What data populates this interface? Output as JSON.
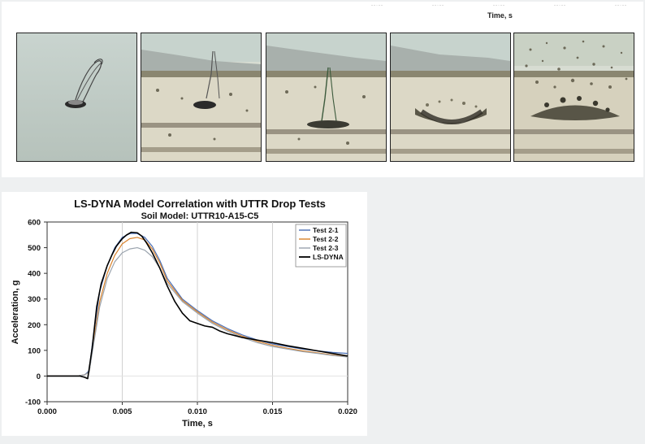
{
  "top_strip": {
    "axis_label": "Time, s",
    "frame_count": 5
  },
  "chart_data": {
    "type": "line",
    "title": "LS-DYNA Model Correlation with UTTR Drop Tests",
    "subtitle": "Soil Model: UTTR10-A15-C5",
    "xlabel": "Time, s",
    "ylabel": "Acceleration, g",
    "xlim": [
      0,
      0.02
    ],
    "ylim": [
      -100,
      600
    ],
    "x_ticks": [
      "0.000",
      "0.005",
      "0.010",
      "0.015",
      "0.020"
    ],
    "y_ticks": [
      "-100",
      "0",
      "100",
      "200",
      "300",
      "400",
      "500",
      "600"
    ],
    "x_tick_values": [
      0,
      0.005,
      0.01,
      0.015,
      0.02
    ],
    "y_tick_values": [
      -100,
      0,
      100,
      200,
      300,
      400,
      500,
      600
    ],
    "legend_position": "top-right",
    "grid": "vertical",
    "series": [
      {
        "name": "Test 2-1",
        "color": "#4a6fb5",
        "x": [
          0,
          0.002,
          0.0025,
          0.0028,
          0.003,
          0.0035,
          0.004,
          0.0045,
          0.005,
          0.0055,
          0.006,
          0.0065,
          0.007,
          0.0075,
          0.008,
          0.009,
          0.01,
          0.011,
          0.012,
          0.013,
          0.014,
          0.015,
          0.016,
          0.017,
          0.018,
          0.019,
          0.02
        ],
        "y": [
          0,
          0,
          5,
          20,
          120,
          330,
          430,
          500,
          540,
          555,
          555,
          540,
          505,
          450,
          380,
          300,
          255,
          215,
          185,
          160,
          140,
          125,
          115,
          105,
          98,
          92,
          88
        ]
      },
      {
        "name": "Test 2-2",
        "color": "#d9822b",
        "x": [
          0,
          0.002,
          0.0025,
          0.0028,
          0.003,
          0.0035,
          0.004,
          0.0045,
          0.005,
          0.0055,
          0.006,
          0.0065,
          0.007,
          0.0075,
          0.008,
          0.009,
          0.01,
          0.011,
          0.012,
          0.013,
          0.014,
          0.015,
          0.016,
          0.017,
          0.018,
          0.019,
          0.02
        ],
        "y": [
          0,
          0,
          5,
          15,
          100,
          290,
          400,
          470,
          515,
          535,
          540,
          530,
          495,
          440,
          370,
          295,
          250,
          210,
          180,
          155,
          135,
          120,
          108,
          98,
          90,
          82,
          76
        ]
      },
      {
        "name": "Test 2-3",
        "color": "#9aa3ad",
        "x": [
          0,
          0.002,
          0.0025,
          0.0028,
          0.003,
          0.0035,
          0.004,
          0.0045,
          0.005,
          0.0055,
          0.006,
          0.0065,
          0.007,
          0.0075,
          0.008,
          0.009,
          0.01,
          0.011,
          0.012,
          0.013,
          0.014,
          0.015,
          0.016,
          0.017,
          0.018,
          0.019,
          0.02
        ],
        "y": [
          0,
          0,
          5,
          15,
          90,
          270,
          380,
          445,
          480,
          495,
          500,
          490,
          465,
          420,
          360,
          290,
          245,
          205,
          175,
          150,
          130,
          115,
          105,
          95,
          88,
          80,
          74
        ]
      },
      {
        "name": "LS-DYNA",
        "color": "#000000",
        "x": [
          0,
          0.0022,
          0.0025,
          0.0027,
          0.003,
          0.0033,
          0.0036,
          0.004,
          0.0043,
          0.0046,
          0.005,
          0.0053,
          0.0056,
          0.006,
          0.0063,
          0.0066,
          0.007,
          0.0075,
          0.008,
          0.0085,
          0.009,
          0.0095,
          0.01,
          0.0105,
          0.011,
          0.0115,
          0.012,
          0.013,
          0.014,
          0.015,
          0.016,
          0.017,
          0.018,
          0.019,
          0.02
        ],
        "y": [
          0,
          0,
          -5,
          -10,
          110,
          270,
          360,
          430,
          470,
          505,
          535,
          550,
          560,
          558,
          545,
          520,
          480,
          420,
          350,
          290,
          245,
          215,
          205,
          195,
          190,
          175,
          165,
          150,
          140,
          130,
          118,
          108,
          98,
          88,
          78
        ]
      }
    ]
  }
}
